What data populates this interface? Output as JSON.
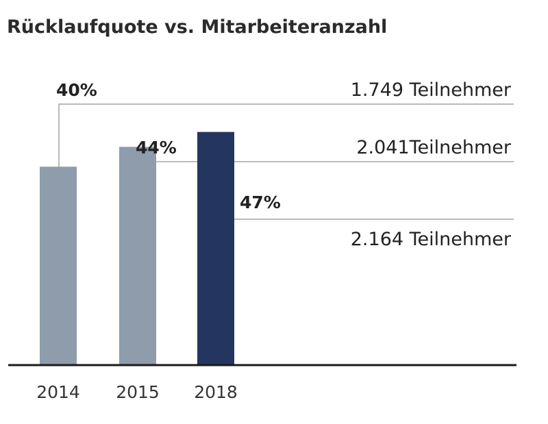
{
  "chart_data": {
    "type": "bar",
    "title": "Rücklaufquote vs. Mitarbeiteranzahl",
    "categories": [
      "2014",
      "2015",
      "2018"
    ],
    "series": [
      {
        "values": [
          40,
          44,
          47
        ],
        "value_labels": [
          "40%",
          "44%",
          "47%"
        ],
        "participant_labels": [
          "1.749 Teilnehmer",
          "2.041Teilnehmer",
          "2.164 Teilnehmer"
        ]
      }
    ],
    "ylim": [
      0,
      72.5
    ],
    "grid": false,
    "highlight_index": 2
  },
  "colors": {
    "bar": "#8e9cab",
    "bar_highlight": "#243660",
    "axis": "#1a1a1a",
    "leader": "#a0a4a8"
  }
}
